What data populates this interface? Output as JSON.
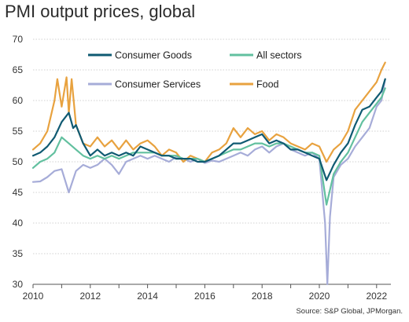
{
  "chart_data": {
    "type": "line",
    "title": "PMI output prices, global",
    "source": "Source: S&P Global, JPMorgan.",
    "xlim": [
      2010,
      2022.5
    ],
    "ylim": [
      30,
      70
    ],
    "x_ticks": [
      2010,
      2012,
      2014,
      2016,
      2018,
      2020,
      2022
    ],
    "y_ticks": [
      30,
      35,
      40,
      45,
      50,
      55,
      60,
      65,
      70
    ],
    "grid": "horizontal",
    "legend": "top",
    "series": [
      {
        "name": "Consumer Services",
        "color": "#a6acd8",
        "points": [
          [
            2010.0,
            46.7
          ],
          [
            2010.25,
            46.8
          ],
          [
            2010.5,
            47.5
          ],
          [
            2010.75,
            48.5
          ],
          [
            2011.0,
            48.8
          ],
          [
            2011.25,
            45.0
          ],
          [
            2011.5,
            48.5
          ],
          [
            2011.75,
            49.5
          ],
          [
            2012.0,
            49.0
          ],
          [
            2012.25,
            49.5
          ],
          [
            2012.5,
            50.5
          ],
          [
            2012.75,
            49.5
          ],
          [
            2013.0,
            48.0
          ],
          [
            2013.25,
            50.0
          ],
          [
            2013.5,
            50.5
          ],
          [
            2013.75,
            51.0
          ],
          [
            2014.0,
            50.5
          ],
          [
            2014.25,
            51.0
          ],
          [
            2014.5,
            50.5
          ],
          [
            2014.75,
            50.0
          ],
          [
            2015.0,
            50.8
          ],
          [
            2015.25,
            50.5
          ],
          [
            2015.5,
            50.0
          ],
          [
            2015.75,
            50.5
          ],
          [
            2016.0,
            49.8
          ],
          [
            2016.25,
            50.2
          ],
          [
            2016.5,
            50.0
          ],
          [
            2016.75,
            50.5
          ],
          [
            2017.0,
            51.0
          ],
          [
            2017.25,
            51.5
          ],
          [
            2017.5,
            51.0
          ],
          [
            2017.75,
            52.0
          ],
          [
            2018.0,
            52.5
          ],
          [
            2018.25,
            51.5
          ],
          [
            2018.5,
            52.5
          ],
          [
            2018.75,
            53.0
          ],
          [
            2019.0,
            52.0
          ],
          [
            2019.25,
            51.5
          ],
          [
            2019.5,
            51.0
          ],
          [
            2019.75,
            51.5
          ],
          [
            2020.0,
            50.5
          ],
          [
            2020.2,
            40.0
          ],
          [
            2020.28,
            30.0
          ],
          [
            2020.37,
            41.0
          ],
          [
            2020.5,
            47.5
          ],
          [
            2020.75,
            49.5
          ],
          [
            2021.0,
            50.5
          ],
          [
            2021.25,
            52.5
          ],
          [
            2021.5,
            54.0
          ],
          [
            2021.75,
            55.5
          ],
          [
            2022.0,
            59.0
          ],
          [
            2022.17,
            60.0
          ],
          [
            2022.3,
            63.5
          ]
        ]
      },
      {
        "name": "Food",
        "color": "#e8a23f",
        "points": [
          [
            2010.0,
            52.0
          ],
          [
            2010.25,
            53.0
          ],
          [
            2010.5,
            55.0
          ],
          [
            2010.75,
            60.0
          ],
          [
            2010.85,
            63.5
          ],
          [
            2011.0,
            59.0
          ],
          [
            2011.17,
            63.8
          ],
          [
            2011.25,
            58.0
          ],
          [
            2011.35,
            63.5
          ],
          [
            2011.5,
            56.0
          ],
          [
            2011.75,
            53.0
          ],
          [
            2012.0,
            52.5
          ],
          [
            2012.25,
            54.0
          ],
          [
            2012.5,
            52.5
          ],
          [
            2012.75,
            53.5
          ],
          [
            2013.0,
            52.0
          ],
          [
            2013.25,
            53.5
          ],
          [
            2013.5,
            52.0
          ],
          [
            2013.75,
            53.0
          ],
          [
            2014.0,
            53.5
          ],
          [
            2014.25,
            52.5
          ],
          [
            2014.5,
            51.0
          ],
          [
            2014.75,
            52.0
          ],
          [
            2015.0,
            51.5
          ],
          [
            2015.25,
            50.0
          ],
          [
            2015.5,
            51.0
          ],
          [
            2015.75,
            50.5
          ],
          [
            2016.0,
            50.0
          ],
          [
            2016.25,
            51.5
          ],
          [
            2016.5,
            52.0
          ],
          [
            2016.75,
            53.0
          ],
          [
            2017.0,
            55.5
          ],
          [
            2017.25,
            54.0
          ],
          [
            2017.5,
            55.5
          ],
          [
            2017.75,
            54.5
          ],
          [
            2018.0,
            55.0
          ],
          [
            2018.25,
            53.5
          ],
          [
            2018.5,
            54.5
          ],
          [
            2018.75,
            54.0
          ],
          [
            2019.0,
            53.0
          ],
          [
            2019.25,
            52.5
          ],
          [
            2019.5,
            52.0
          ],
          [
            2019.75,
            53.0
          ],
          [
            2020.0,
            52.5
          ],
          [
            2020.25,
            50.0
          ],
          [
            2020.5,
            52.0
          ],
          [
            2020.75,
            53.0
          ],
          [
            2021.0,
            55.0
          ],
          [
            2021.25,
            58.5
          ],
          [
            2021.5,
            60.0
          ],
          [
            2021.75,
            61.5
          ],
          [
            2022.0,
            63.0
          ],
          [
            2022.17,
            65.0
          ],
          [
            2022.3,
            66.2
          ]
        ]
      },
      {
        "name": "All sectors",
        "color": "#62c09f",
        "points": [
          [
            2010.0,
            49.0
          ],
          [
            2010.25,
            50.0
          ],
          [
            2010.5,
            50.5
          ],
          [
            2010.75,
            51.5
          ],
          [
            2011.0,
            54.0
          ],
          [
            2011.25,
            53.0
          ],
          [
            2011.5,
            52.0
          ],
          [
            2011.75,
            51.0
          ],
          [
            2012.0,
            50.5
          ],
          [
            2012.25,
            51.0
          ],
          [
            2012.5,
            50.5
          ],
          [
            2012.75,
            51.0
          ],
          [
            2013.0,
            50.5
          ],
          [
            2013.25,
            51.0
          ],
          [
            2013.5,
            51.5
          ],
          [
            2013.75,
            51.5
          ],
          [
            2014.0,
            51.5
          ],
          [
            2014.25,
            51.5
          ],
          [
            2014.5,
            51.0
          ],
          [
            2014.75,
            51.0
          ],
          [
            2015.0,
            51.0
          ],
          [
            2015.25,
            50.5
          ],
          [
            2015.5,
            50.5
          ],
          [
            2015.75,
            50.5
          ],
          [
            2016.0,
            50.0
          ],
          [
            2016.25,
            50.5
          ],
          [
            2016.5,
            51.0
          ],
          [
            2016.75,
            51.5
          ],
          [
            2017.0,
            52.0
          ],
          [
            2017.25,
            52.0
          ],
          [
            2017.5,
            52.5
          ],
          [
            2017.75,
            53.0
          ],
          [
            2018.0,
            53.0
          ],
          [
            2018.25,
            52.5
          ],
          [
            2018.5,
            53.0
          ],
          [
            2018.75,
            53.0
          ],
          [
            2019.0,
            52.5
          ],
          [
            2019.25,
            52.0
          ],
          [
            2019.5,
            51.5
          ],
          [
            2019.75,
            51.5
          ],
          [
            2020.0,
            51.0
          ],
          [
            2020.25,
            43.0
          ],
          [
            2020.4,
            46.0
          ],
          [
            2020.5,
            48.0
          ],
          [
            2020.75,
            50.0
          ],
          [
            2021.0,
            51.5
          ],
          [
            2021.25,
            54.0
          ],
          [
            2021.5,
            56.5
          ],
          [
            2021.75,
            58.0
          ],
          [
            2022.0,
            59.5
          ],
          [
            2022.17,
            60.5
          ],
          [
            2022.3,
            62.0
          ]
        ]
      },
      {
        "name": "Consumer Goods",
        "color": "#0f5a72",
        "points": [
          [
            2010.0,
            51.0
          ],
          [
            2010.25,
            51.5
          ],
          [
            2010.5,
            52.5
          ],
          [
            2010.75,
            54.0
          ],
          [
            2011.0,
            56.5
          ],
          [
            2011.25,
            58.0
          ],
          [
            2011.4,
            55.5
          ],
          [
            2011.5,
            56.0
          ],
          [
            2011.75,
            53.0
          ],
          [
            2012.0,
            51.0
          ],
          [
            2012.25,
            52.0
          ],
          [
            2012.5,
            51.0
          ],
          [
            2012.75,
            51.5
          ],
          [
            2013.0,
            51.0
          ],
          [
            2013.25,
            51.5
          ],
          [
            2013.5,
            51.0
          ],
          [
            2013.75,
            52.5
          ],
          [
            2014.0,
            52.0
          ],
          [
            2014.25,
            51.5
          ],
          [
            2014.5,
            51.0
          ],
          [
            2014.75,
            51.0
          ],
          [
            2015.0,
            50.5
          ],
          [
            2015.25,
            50.5
          ],
          [
            2015.5,
            50.5
          ],
          [
            2015.75,
            50.0
          ],
          [
            2016.0,
            50.0
          ],
          [
            2016.25,
            50.5
          ],
          [
            2016.5,
            51.0
          ],
          [
            2016.75,
            52.0
          ],
          [
            2017.0,
            53.0
          ],
          [
            2017.25,
            53.0
          ],
          [
            2017.5,
            53.5
          ],
          [
            2017.75,
            54.0
          ],
          [
            2018.0,
            54.5
          ],
          [
            2018.25,
            53.0
          ],
          [
            2018.5,
            53.5
          ],
          [
            2018.75,
            53.0
          ],
          [
            2019.0,
            52.0
          ],
          [
            2019.25,
            52.0
          ],
          [
            2019.5,
            51.5
          ],
          [
            2019.75,
            51.0
          ],
          [
            2020.0,
            50.5
          ],
          [
            2020.25,
            47.0
          ],
          [
            2020.4,
            48.5
          ],
          [
            2020.5,
            49.5
          ],
          [
            2020.75,
            51.5
          ],
          [
            2021.0,
            53.0
          ],
          [
            2021.25,
            56.0
          ],
          [
            2021.5,
            58.5
          ],
          [
            2021.75,
            59.0
          ],
          [
            2022.0,
            60.5
          ],
          [
            2022.17,
            61.5
          ],
          [
            2022.3,
            63.5
          ]
        ]
      }
    ],
    "legend_items": [
      {
        "name": "Consumer Goods",
        "color": "#0f5a72"
      },
      {
        "name": "All sectors",
        "color": "#62c09f"
      },
      {
        "name": "Consumer Services",
        "color": "#a6acd8"
      },
      {
        "name": "Food",
        "color": "#e8a23f"
      }
    ]
  }
}
